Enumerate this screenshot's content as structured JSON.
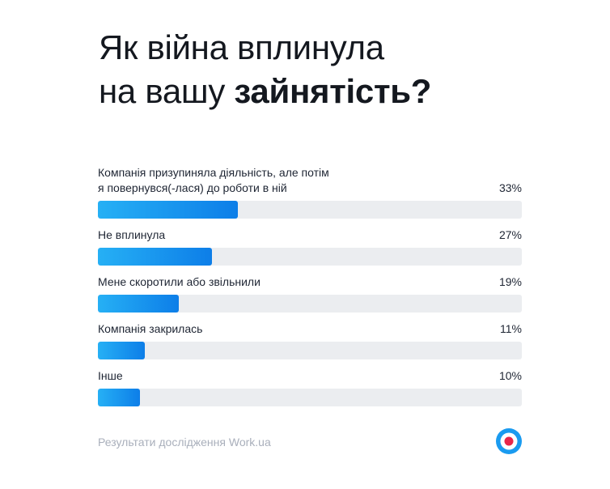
{
  "title": {
    "line1": "Як війна вплинула",
    "line2_regular": "на вашу ",
    "line2_bold": "зайнятість?"
  },
  "chart_data": {
    "type": "bar",
    "orientation": "horizontal",
    "unit": "%",
    "xlim": [
      0,
      100
    ],
    "grid": false,
    "legend": "none",
    "bars": [
      {
        "label_lines": [
          "Компанія призупиняла діяльність, але потім",
          "я повернувся(-лася) до роботи в ній"
        ],
        "value": 33,
        "value_label": "33%"
      },
      {
        "label_lines": [
          "Не вплинула"
        ],
        "value": 27,
        "value_label": "27%"
      },
      {
        "label_lines": [
          "Мене скоротили або звільнили"
        ],
        "value": 19,
        "value_label": "19%"
      },
      {
        "label_lines": [
          "Компанія закрилась"
        ],
        "value": 11,
        "value_label": "11%"
      },
      {
        "label_lines": [
          "Інше"
        ],
        "value": 10,
        "value_label": "10%"
      }
    ]
  },
  "footer": {
    "source": "Результати дослідження Work.ua"
  },
  "colors": {
    "bar_start": "#26b0f5",
    "bar_end": "#0d7ee8",
    "track": "#ebedf0",
    "logo_blue": "#1a9bf0",
    "logo_red": "#e8264a"
  },
  "icons": {
    "logo": "work-ua-target-logo-icon"
  }
}
